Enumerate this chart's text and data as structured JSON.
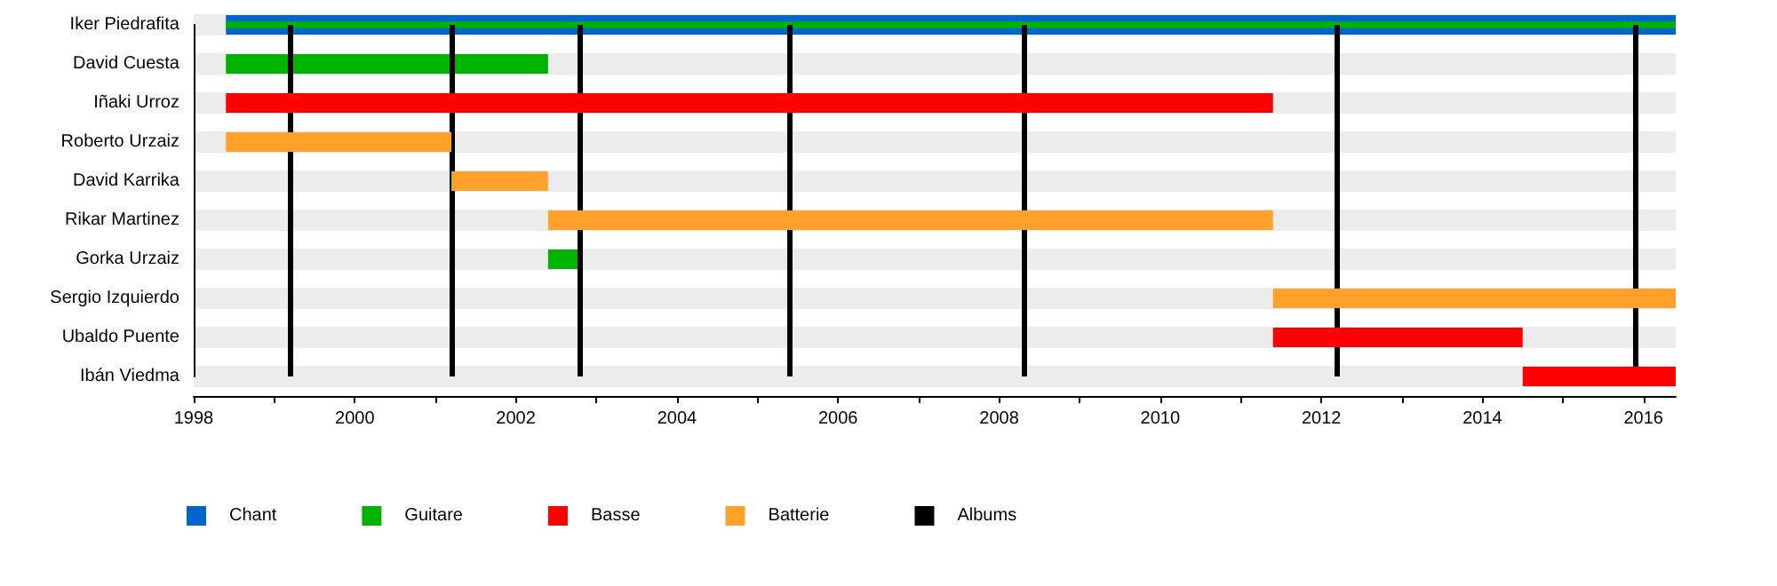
{
  "chart_data": {
    "type": "bar",
    "orientation": "horizontal",
    "grid": "y",
    "legend": "bottom left",
    "categories": [
      "Iker Piedrafita",
      "David Cuesta",
      "Iñaki Urroz",
      "Roberto Urzaiz",
      "David Karrika",
      "Rikar Martinez",
      "Gorka Urzaiz",
      "Sergio Izquierdo",
      "Ubaldo Puente",
      "Ibán Viedma"
    ],
    "xlim": [
      1998,
      2016.4
    ],
    "xticks": [
      1998,
      {
        "value": 1999,
        "label": null
      },
      2000,
      {
        "value": 2001,
        "label": null
      },
      2002,
      {
        "value": 2003,
        "label": null
      },
      2004,
      {
        "value": 2005,
        "label": null
      },
      2006,
      {
        "value": 2007,
        "label": null
      },
      2008,
      {
        "value": 2009,
        "label": null
      },
      2010,
      {
        "value": 2011,
        "label": null
      },
      2012,
      {
        "value": 2013,
        "label": null
      },
      2014,
      {
        "value": 2015,
        "label": null
      },
      2016
    ],
    "series": [
      {
        "name": "Chant",
        "color": "#0066cc",
        "base": [
          1998.4,
          null,
          null,
          null,
          null,
          null,
          null,
          null,
          null,
          null
        ],
        "values": [
          18,
          null,
          null,
          null,
          null,
          null,
          null,
          null,
          null,
          null
        ]
      },
      {
        "name": "Guitare",
        "color": "#00b300",
        "base": [
          1998.4,
          1998.4,
          null,
          null,
          null,
          null,
          2002.4,
          null,
          null,
          null
        ],
        "values": [
          18,
          4,
          null,
          null,
          null,
          null,
          0.4,
          null,
          null,
          null
        ]
      },
      {
        "name": "Basse",
        "color": "#ff0000",
        "base": [
          null,
          null,
          1998.4,
          null,
          null,
          null,
          null,
          null,
          2011.4,
          2014.5
        ],
        "values": [
          null,
          null,
          13,
          null,
          null,
          null,
          null,
          null,
          3.1,
          1.9
        ]
      },
      {
        "name": "Batterie",
        "color": "#ffa12b",
        "base": [
          null,
          null,
          null,
          1998.4,
          2001.2,
          2002.4,
          null,
          2011.4,
          null,
          null
        ],
        "values": [
          null,
          null,
          null,
          2.8,
          1.2,
          9,
          null,
          5,
          null,
          null
        ]
      }
    ],
    "ref_lines": [
      {
        "axis": "x",
        "value": 1999.2,
        "label": "Albums",
        "color": "#000000"
      },
      {
        "axis": "x",
        "value": 2001.2,
        "color": "#000000"
      },
      {
        "axis": "x",
        "value": 2002.8,
        "color": "#000000"
      },
      {
        "axis": "x",
        "value": 2005.4,
        "color": "#000000"
      },
      {
        "axis": "x",
        "value": 2008.3,
        "color": "#000000"
      },
      {
        "axis": "x",
        "value": 2012.2,
        "color": "#000000"
      },
      {
        "axis": "x",
        "value": 2015.9,
        "color": "#000000"
      }
    ]
  }
}
